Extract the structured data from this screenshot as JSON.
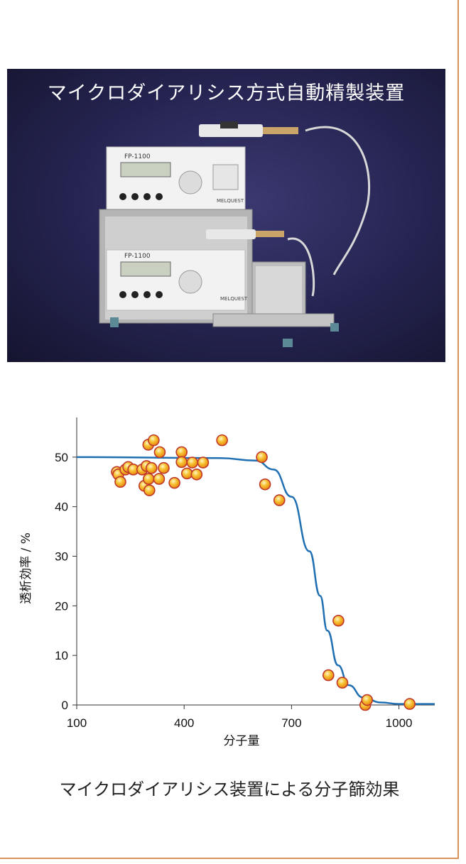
{
  "photo": {
    "title": "マイクロダイアリシス方式自動精製装置",
    "device_model_label": "FP-1100",
    "device_brand_label": "MELQUEST"
  },
  "chart_data": {
    "type": "scatter",
    "title": "マイクロダイアリシス装置による分子篩効果",
    "xlabel": "分子量",
    "ylabel": "透析効率 / %",
    "xlim": [
      100,
      1100
    ],
    "ylim": [
      0,
      58
    ],
    "xticks": [
      100,
      400,
      700,
      1000
    ],
    "yticks": [
      0,
      10,
      20,
      30,
      40,
      50
    ],
    "grid": false,
    "points": [
      {
        "x": 212,
        "y": 47
      },
      {
        "x": 216,
        "y": 46.5
      },
      {
        "x": 222,
        "y": 45
      },
      {
        "x": 236,
        "y": 47.5
      },
      {
        "x": 244,
        "y": 48
      },
      {
        "x": 258,
        "y": 47.5
      },
      {
        "x": 283,
        "y": 47.5
      },
      {
        "x": 289,
        "y": 44.2
      },
      {
        "x": 295,
        "y": 48.2
      },
      {
        "x": 300,
        "y": 52.5
      },
      {
        "x": 301,
        "y": 45.6
      },
      {
        "x": 303,
        "y": 43.3
      },
      {
        "x": 309,
        "y": 47.8
      },
      {
        "x": 315,
        "y": 53.4
      },
      {
        "x": 330,
        "y": 45.6
      },
      {
        "x": 332,
        "y": 51
      },
      {
        "x": 343,
        "y": 47.8
      },
      {
        "x": 373,
        "y": 44.8
      },
      {
        "x": 393,
        "y": 51
      },
      {
        "x": 393,
        "y": 49
      },
      {
        "x": 408,
        "y": 46.7
      },
      {
        "x": 423,
        "y": 48.9
      },
      {
        "x": 435,
        "y": 46.5
      },
      {
        "x": 453,
        "y": 48.9
      },
      {
        "x": 506,
        "y": 53.4
      },
      {
        "x": 617,
        "y": 50
      },
      {
        "x": 626,
        "y": 44.5
      },
      {
        "x": 666,
        "y": 41.3
      },
      {
        "x": 803,
        "y": 6
      },
      {
        "x": 831,
        "y": 17
      },
      {
        "x": 842,
        "y": 4.5
      },
      {
        "x": 906,
        "y": 0
      },
      {
        "x": 911,
        "y": 1
      },
      {
        "x": 1030,
        "y": 0.2
      }
    ],
    "fit_curve": {
      "type": "sigmoid",
      "color": "#1f6fb2",
      "samples": [
        {
          "x": 100,
          "y": 50
        },
        {
          "x": 500,
          "y": 49.8
        },
        {
          "x": 600,
          "y": 49.3
        },
        {
          "x": 650,
          "y": 47.5
        },
        {
          "x": 700,
          "y": 42
        },
        {
          "x": 750,
          "y": 31
        },
        {
          "x": 780,
          "y": 22
        },
        {
          "x": 800,
          "y": 15
        },
        {
          "x": 830,
          "y": 8
        },
        {
          "x": 860,
          "y": 4
        },
        {
          "x": 900,
          "y": 1.5
        },
        {
          "x": 950,
          "y": 0.5
        },
        {
          "x": 1000,
          "y": 0.2
        },
        {
          "x": 1100,
          "y": 0.2
        }
      ]
    },
    "marker_color": "#f2a516"
  }
}
